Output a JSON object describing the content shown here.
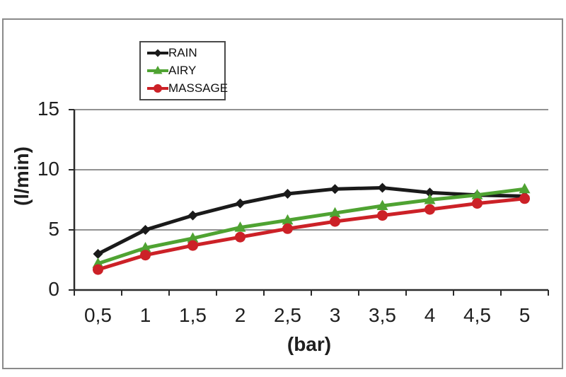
{
  "figure": {
    "background": "#ffffff",
    "frame_border_color": "#8a8a8a"
  },
  "chart_data": {
    "type": "line",
    "title": "",
    "x_axis": {
      "label": "(bar)",
      "categories": [
        "0,5",
        "1",
        "1,5",
        "2",
        "2,5",
        "3",
        "3,5",
        "4",
        "4,5",
        "5"
      ]
    },
    "y_axis": {
      "label": "(l/min)",
      "min": 0,
      "max": 15,
      "ticks": [
        0,
        5,
        10,
        15
      ],
      "tick_labels": [
        "0",
        "5",
        "10",
        "15"
      ]
    },
    "grid": "horizontal",
    "legend_position": "top-inside-left",
    "series": [
      {
        "name": "RAIN",
        "color": "#1a1a1a",
        "marker": "diamond",
        "values": [
          3.0,
          5.0,
          6.2,
          7.2,
          8.0,
          8.4,
          8.5,
          8.1,
          7.9,
          7.8
        ]
      },
      {
        "name": "AIRY",
        "color": "#4fa332",
        "marker": "triangle",
        "values": [
          2.2,
          3.5,
          4.3,
          5.2,
          5.8,
          6.4,
          7.0,
          7.5,
          7.9,
          8.4
        ]
      },
      {
        "name": "MASSAGE",
        "color": "#cc2127",
        "marker": "circle",
        "values": [
          1.7,
          2.9,
          3.7,
          4.4,
          5.1,
          5.7,
          6.2,
          6.7,
          7.2,
          7.6
        ]
      }
    ],
    "style": {
      "grid_color": "#6e6e6e",
      "axis_color": "#2b2b2b",
      "text_color": "#1f1f1f",
      "line_width": 5
    }
  }
}
